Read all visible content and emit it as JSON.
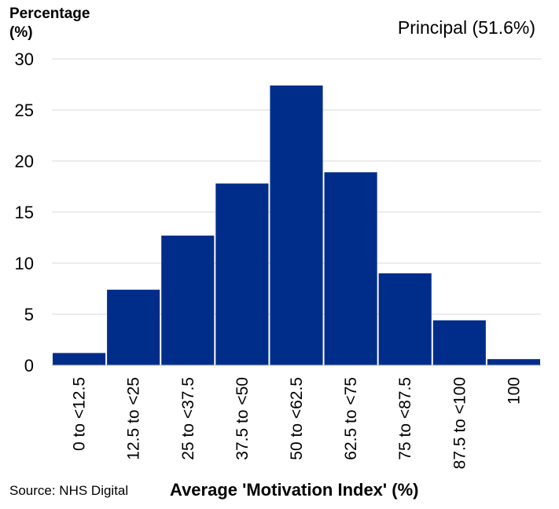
{
  "chart_data": {
    "type": "bar",
    "ylabel": "Percentage\n(%)",
    "xlabel": "Average 'Motivation Index' (%)",
    "series_label": "Principal (51.6%)",
    "source": "Source: NHS Digital",
    "categories": [
      "0 to <12.5",
      "12.5 to <25",
      "25 to <37.5",
      "37.5 to <50",
      "50 to <62.5",
      "62.5 to <75",
      "75 to <87.5",
      "87.5 to <100",
      "100"
    ],
    "values": [
      1.2,
      7.4,
      12.7,
      17.8,
      27.4,
      18.9,
      9.0,
      4.4,
      0.6
    ],
    "ylim": [
      0,
      30
    ],
    "yticks": [
      0,
      5,
      10,
      15,
      20,
      25,
      30
    ],
    "grid": true,
    "bar_color": "#002D8A",
    "grid_color": "#d9d9d9"
  }
}
